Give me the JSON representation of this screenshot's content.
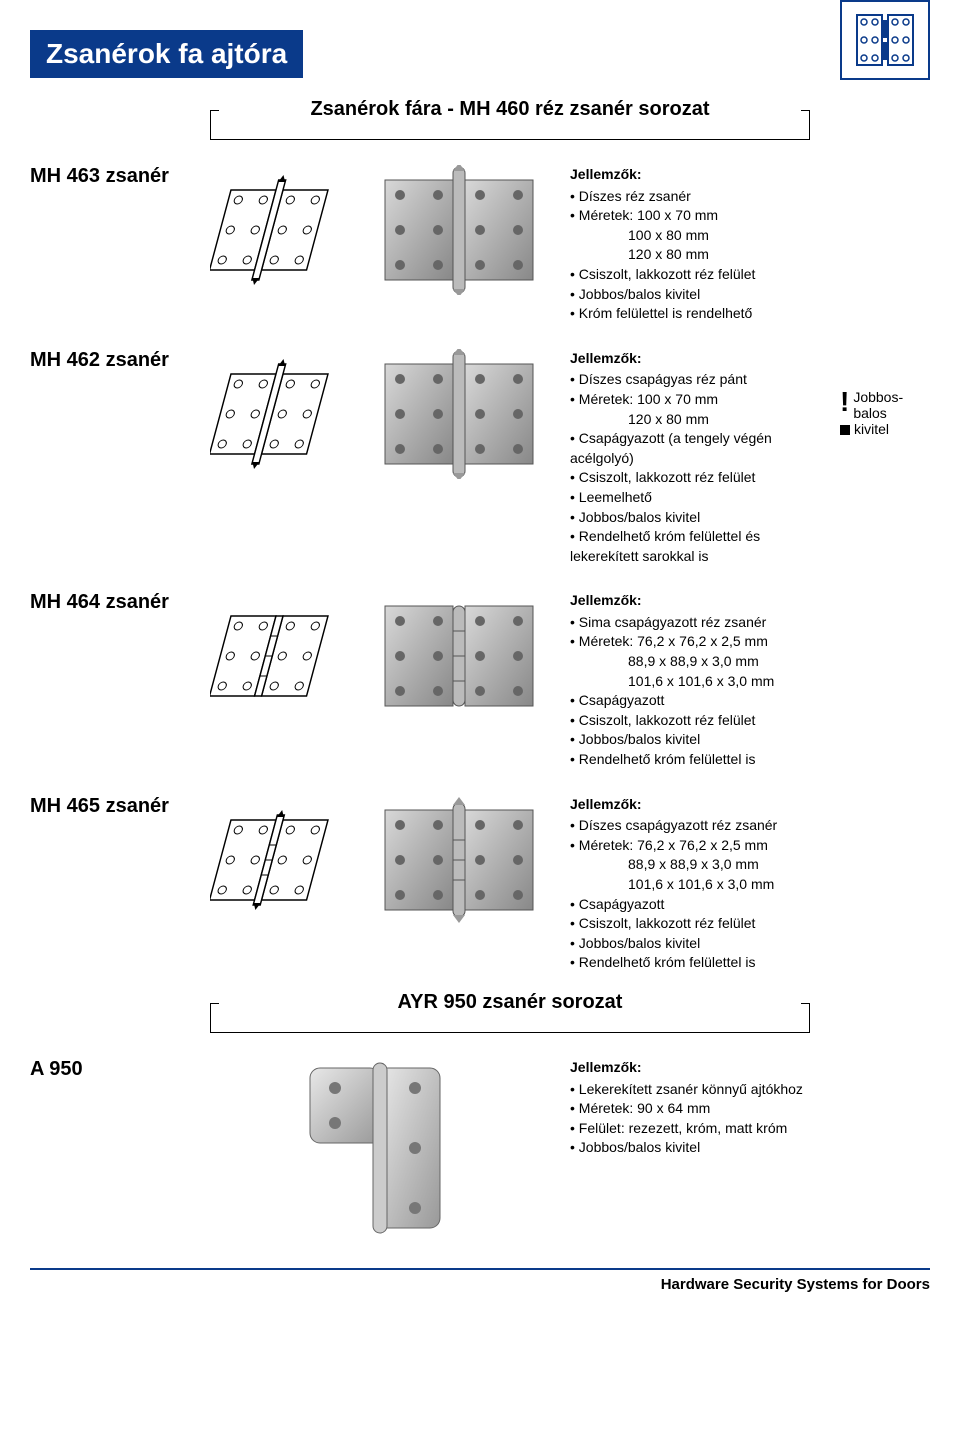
{
  "page_title": "Zsanérok fa ajtóra",
  "section1_title": "Zsanérok fára - MH 460 réz zsanér sorozat",
  "section2_title": "AYR 950 zsanér sorozat",
  "note": {
    "line1": "Jobbos-",
    "line2": "balos",
    "line3": "kivitel"
  },
  "footer": "Hardware Security Systems for Doors",
  "colors": {
    "brand_blue": "#0a3a8a",
    "text": "#000000",
    "bg": "#ffffff"
  },
  "products": {
    "mh463": {
      "label": "MH 463 zsanér",
      "head": "Jellemzők:",
      "lines": [
        "Díszes réz zsanér",
        "Méretek: 100 x 70 mm",
        "__indent__100 x 80 mm",
        "__indent__120 x 80 mm",
        "Csiszolt, lakkozott réz felület",
        "Jobbos/balos kivitel",
        "Króm felülettel is rendelhető"
      ]
    },
    "mh462": {
      "label": "MH 462 zsanér",
      "head": "Jellemzők:",
      "lines": [
        "Díszes csapágyas réz pánt",
        "Méretek: 100 x 70 mm",
        "__indent__120 x 80 mm",
        "Csapágyazott (a tengely végén acélgolyó)",
        "Csiszolt, lakkozott réz felület",
        "Leemelhető",
        "Jobbos/balos kivitel",
        "Rendelhető króm felülettel és lekerekített sarokkal is"
      ]
    },
    "mh464": {
      "label": "MH 464 zsanér",
      "head": "Jellemzők:",
      "lines": [
        "Sima csapágyazott réz zsanér",
        "Méretek: 76,2 x  76,2 x 2,5 mm",
        "__indent__88,9 x  88,9 x 3,0 mm",
        "__indent__101,6 x 101,6 x 3,0 mm",
        "Csapágyazott",
        "Csiszolt, lakkozott réz felület",
        "Jobbos/balos kivitel",
        "Rendelhető króm felülettel is"
      ]
    },
    "mh465": {
      "label": "MH 465 zsanér",
      "head": "Jellemzők:",
      "lines": [
        "Díszes csapágyazott réz zsanér",
        "Méretek: 76,2 x  76,2 x 2,5 mm",
        "__indent__88,9 x  88,9 x 3,0 mm",
        "__indent__101,6 x 101,6 x 3,0 mm",
        "Csapágyazott",
        "Csiszolt, lakkozott réz felület",
        "Jobbos/balos kivitel",
        "Rendelhető króm felülettel is"
      ]
    },
    "a950": {
      "label": "A 950",
      "head": "Jellemzők:",
      "lines": [
        "Lekerekített zsanér könnyű ajtókhoz",
        "Méretek: 90 x 64 mm",
        "Felület: rezezett, króm, matt króm",
        "Jobbos/balos kivitel"
      ]
    }
  }
}
